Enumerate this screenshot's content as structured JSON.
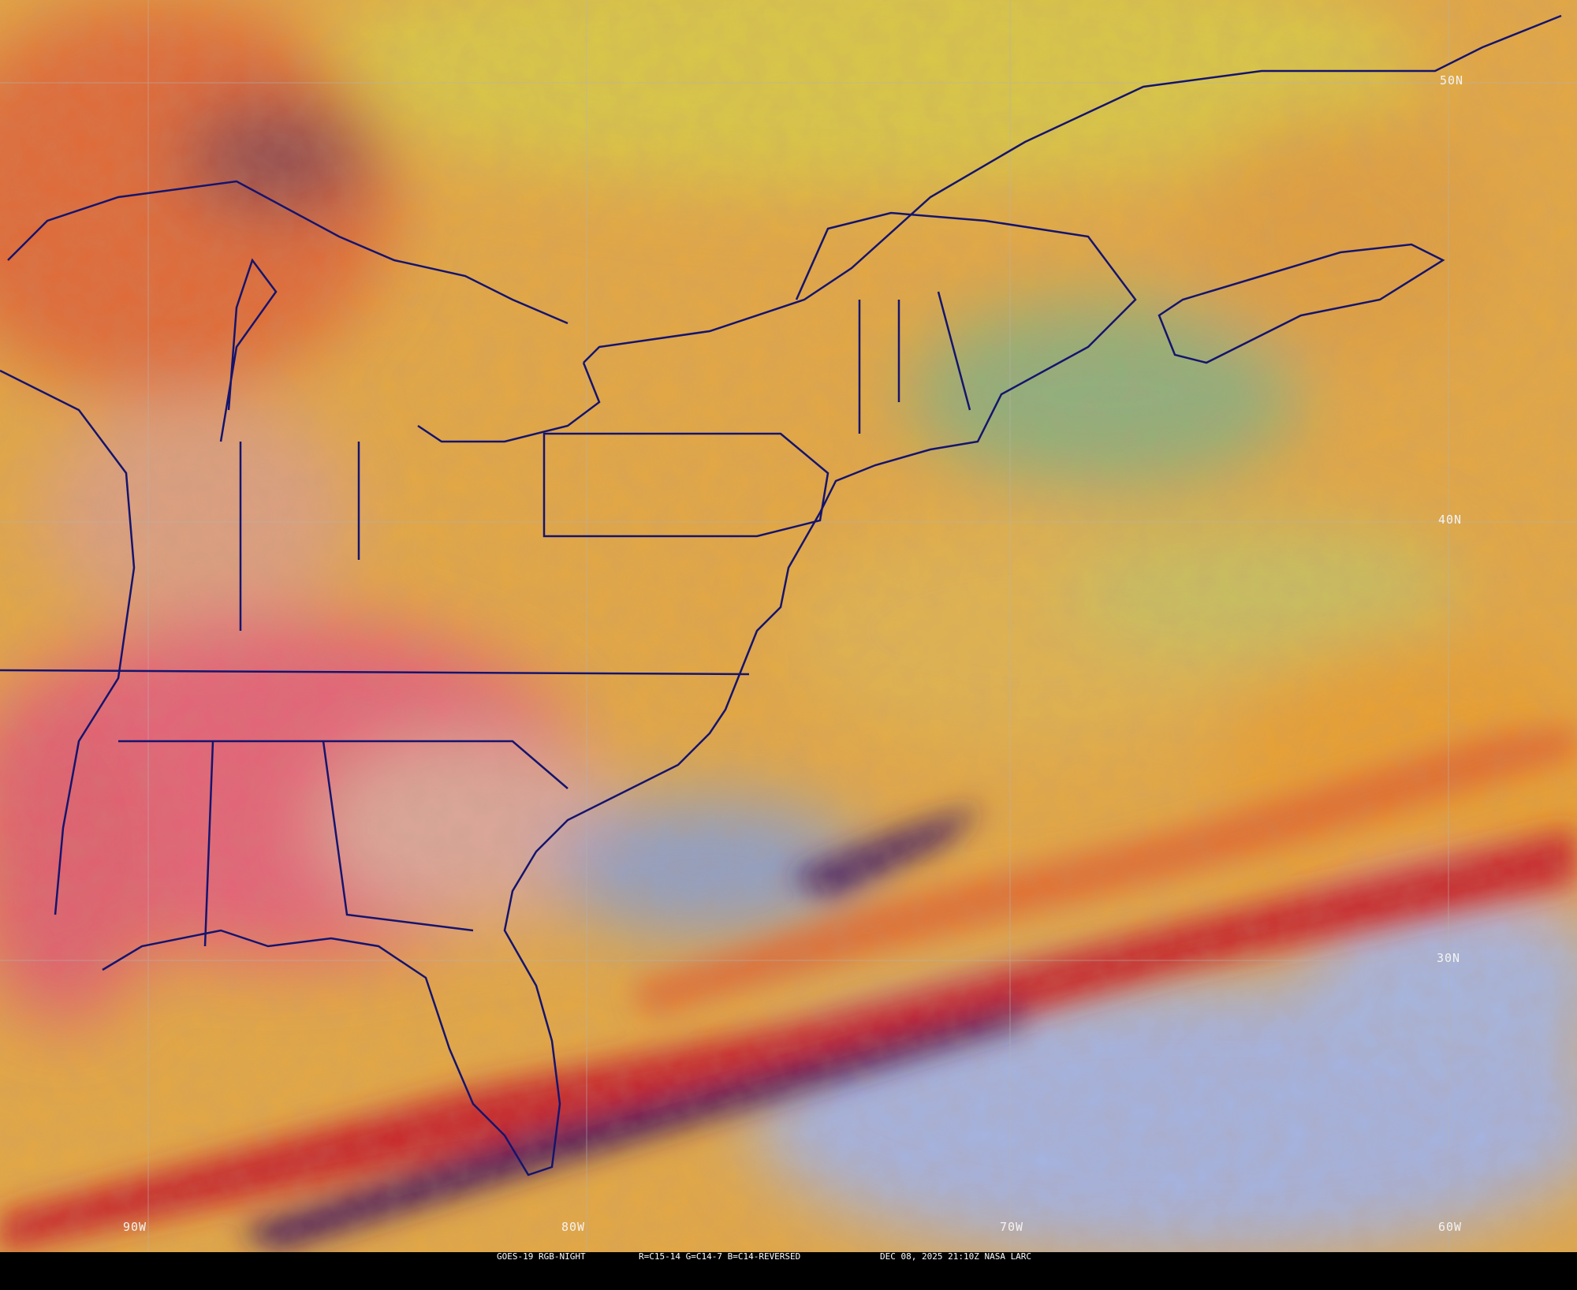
{
  "caption": {
    "satellite": "GOES-19 RGB-NIGHT",
    "channels": "R=C15-14 G=C14-7 B=C14-REVERSED",
    "datetime": "DEC 08, 2025 21:10Z NASA LARC"
  },
  "grid_labels": {
    "lat": [
      "50N",
      "40N",
      "30N"
    ],
    "lon": [
      "90W",
      "80W",
      "70W",
      "60W"
    ]
  },
  "colors": {
    "cloud_yellow": "#e2c04a",
    "cloud_orange": "#e69a34",
    "low_cloud_pink": "#e46478",
    "deep_red": "#c8282c",
    "clear_ocean_blue": "#a4b4e2",
    "water_green": "#8fb07c",
    "boundaries": "#14146e",
    "gridlines": "#b4b4b4"
  }
}
